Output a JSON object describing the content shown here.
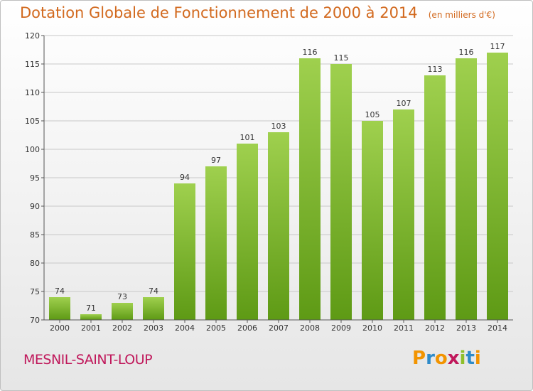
{
  "title": "Dotation Globale de Fonctionnement de 2000 à 2014",
  "subtitle": "(en milliers d'€)",
  "commune": "MESNIL-SAINT-LOUP",
  "logo": {
    "text": "Proxiti",
    "letter_colors": [
      "#f29400",
      "#2e8bc9",
      "#f29400",
      "#c0185b",
      "#8fbf2b",
      "#2e8bc9",
      "#f29400"
    ]
  },
  "colors": {
    "title": "#d2691e",
    "commune": "#c0185b",
    "bar_top": "#9fd04e",
    "bar_bottom": "#5e9a15",
    "grid": "#c8c8c8"
  },
  "chart_data": {
    "type": "bar",
    "categories": [
      "2000",
      "2001",
      "2002",
      "2003",
      "2004",
      "2005",
      "2006",
      "2007",
      "2008",
      "2009",
      "2010",
      "2011",
      "2012",
      "2013",
      "2014"
    ],
    "values": [
      74,
      71,
      73,
      74,
      94,
      97,
      101,
      103,
      116,
      115,
      105,
      107,
      113,
      116,
      117
    ],
    "ylim": [
      70,
      120
    ],
    "yticks": [
      70,
      75,
      80,
      85,
      90,
      95,
      100,
      105,
      110,
      115,
      120
    ],
    "grid": true,
    "xlabel": "",
    "ylabel": ""
  }
}
